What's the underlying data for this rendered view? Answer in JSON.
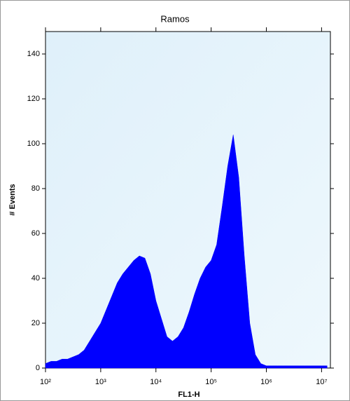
{
  "chart_data": {
    "type": "area",
    "title": "Ramos",
    "xlabel": "FL1-H",
    "ylabel": "# Events",
    "xscale": "log",
    "color": "#0000ff",
    "x": [
      100,
      126,
      158,
      200,
      251,
      316,
      398,
      501,
      631,
      794,
      1000,
      1259,
      1585,
      1995,
      2512,
      3162,
      3981,
      5012,
      6310,
      7943,
      10000,
      12589,
      15849,
      19953,
      25119,
      31623,
      39811,
      50119,
      63096,
      79433,
      100000,
      125893,
      158489,
      199526,
      251189,
      316228,
      398107,
      501187,
      630957,
      794328,
      1000000,
      1258925,
      1584893,
      1995262,
      2511886,
      3162278,
      3981072,
      5011872,
      6309573,
      7943282,
      10000000,
      12589254
    ],
    "values": [
      2,
      3,
      3,
      4,
      4,
      5,
      6,
      8,
      12,
      16,
      20,
      26,
      32,
      38,
      42,
      45,
      48,
      50,
      49,
      42,
      30,
      22,
      14,
      12,
      14,
      18,
      25,
      33,
      40,
      45,
      48,
      55,
      72,
      90,
      104,
      85,
      50,
      20,
      6,
      2,
      1,
      1,
      1,
      1,
      1,
      1,
      1,
      1,
      1,
      1,
      1,
      1
    ],
    "xlim": [
      100,
      14450000
    ],
    "ylim": [
      0,
      150
    ],
    "xticks": [
      {
        "value": 100,
        "label": "10²"
      },
      {
        "value": 1000,
        "label": "10³"
      },
      {
        "value": 10000,
        "label": "10⁴"
      },
      {
        "value": 100000,
        "label": "10⁵"
      },
      {
        "value": 1000000,
        "label": "10⁶"
      },
      {
        "value": 10000000,
        "label": "10⁷"
      }
    ],
    "yticks": [
      0,
      20,
      40,
      60,
      80,
      100,
      120,
      140
    ]
  }
}
